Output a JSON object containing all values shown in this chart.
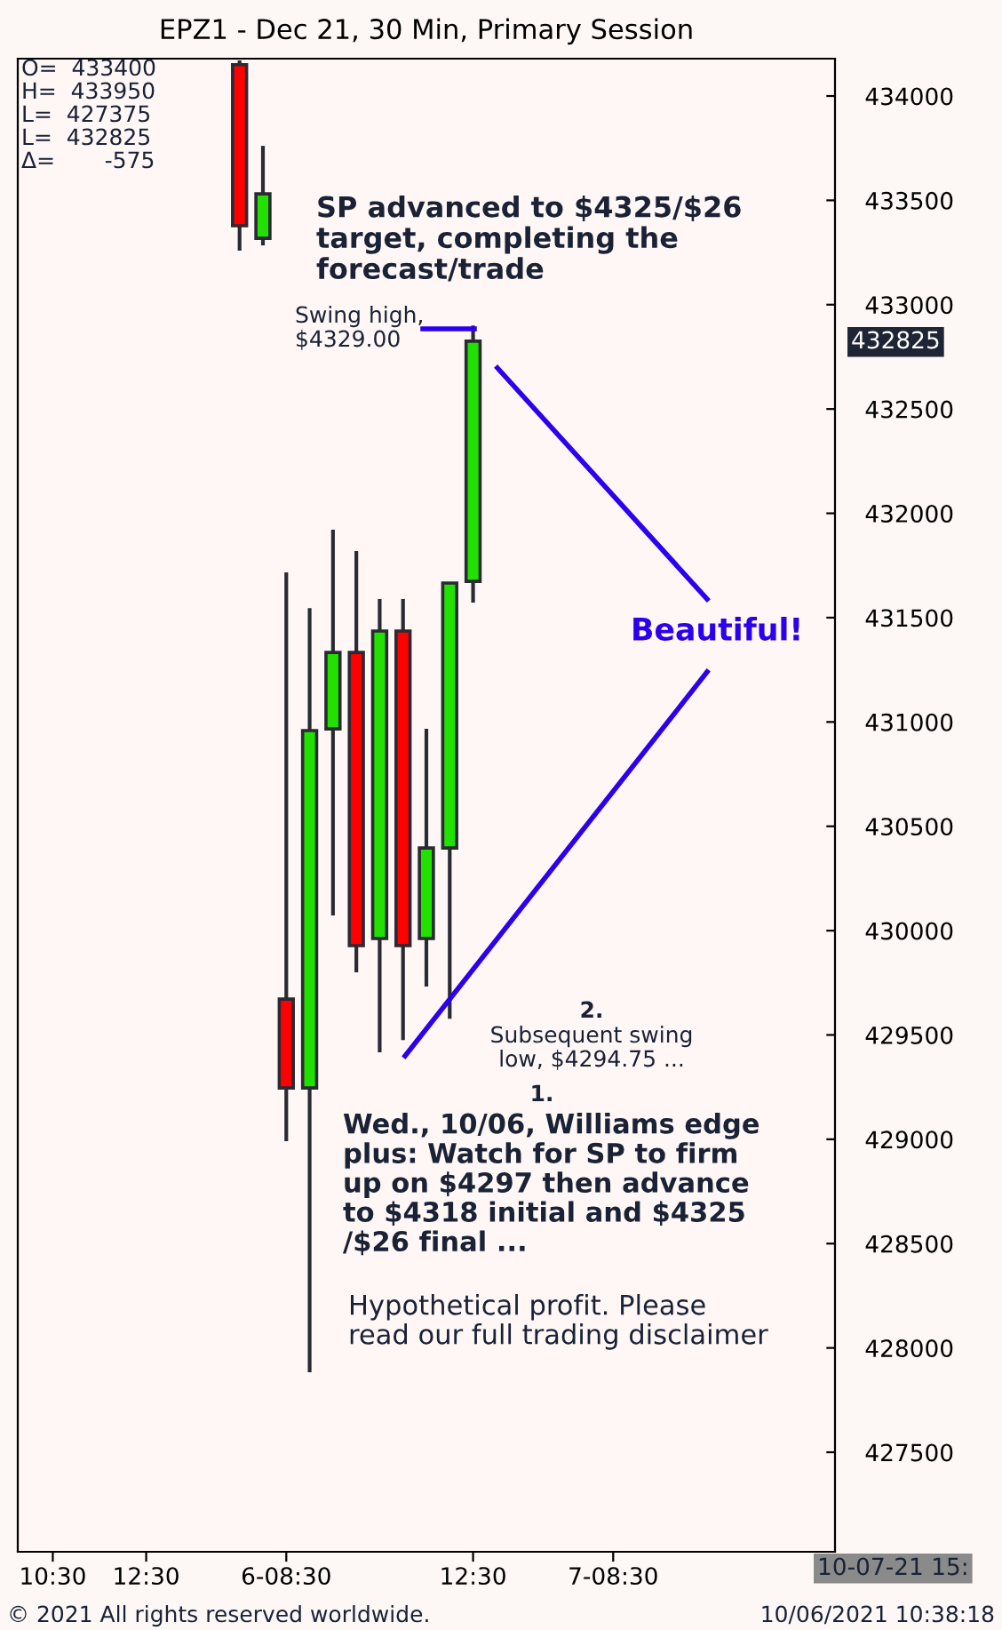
{
  "chart_data": {
    "type": "candlestick",
    "title": "EPZ1 - Dec 21, 30 Min, Primary Session",
    "categories": [
      null,
      "10:30",
      null,
      null,
      null,
      "12:30",
      null,
      null,
      null,
      null,
      null,
      "6-08:30",
      null,
      null,
      null,
      null,
      null,
      null,
      null,
      "12:30",
      null,
      null,
      null,
      null,
      null,
      "7-08:30",
      null,
      null,
      null,
      null,
      null,
      null,
      null,
      null,
      null
    ],
    "ohlc": [
      null,
      null,
      null,
      null,
      null,
      null,
      null,
      null,
      null,
      [
        434150,
        434170,
        433259,
        433378
      ],
      [
        433318,
        433761,
        433284,
        433531
      ],
      [
        429672,
        431717,
        428991,
        429246
      ],
      [
        429246,
        431546,
        427883,
        430959
      ],
      [
        430967,
        431921,
        430073,
        431333
      ],
      [
        431333,
        431819,
        429800,
        429928
      ],
      [
        429962,
        431589,
        429417,
        431436
      ],
      [
        431436,
        431589,
        429475,
        429928
      ],
      [
        429962,
        430967,
        429732,
        430396
      ],
      [
        430396,
        431666,
        429578,
        431666
      ],
      [
        431674,
        432900,
        431572,
        432825
      ],
      null,
      null,
      null,
      null,
      null,
      null,
      null,
      null,
      null,
      null,
      null,
      null,
      null,
      null,
      null
    ],
    "colors": [
      null,
      null,
      null,
      null,
      null,
      null,
      null,
      null,
      null,
      "#ff0000",
      "#22e000",
      "#ff0000",
      "#22e000",
      "#22e000",
      "#ff0000",
      "#22e000",
      "#ff0000",
      "#22e000",
      "#22e000",
      "#22e000",
      null,
      null,
      null,
      null,
      null,
      null,
      null,
      null,
      null,
      null,
      null,
      null,
      null,
      null,
      null
    ],
    "ylim": [
      427023,
      434179
    ],
    "yticks": [
      427500,
      428000,
      428500,
      429000,
      429500,
      430000,
      430500,
      431000,
      431500,
      432000,
      432500,
      433000,
      433500,
      434000
    ],
    "grid": false,
    "annotations": [
      "O=  433400",
      "H=  433950",
      "L=  427375",
      "L=  432825",
      "Δ=       -575",
      "SP advanced to $4325/$26\ntarget, completing the\nforecast/trade",
      "Swing high,\n$4329.00",
      "Beautiful!",
      "Subsequent swing\nlow, $4294.75 ...",
      "2.",
      "1.",
      "Wed., 10/06, Williams edge\nplus: Watch for SP to firm\nup on $4297 then advance\nto $4318 initial and $4325\n/$26 final ...",
      "Hypothetical profit. Please\nread our full trading disclaimer",
      "432825",
      "10-07-21 15:",
      "© 2021 All rights reserved worldwide.",
      "10/06/2021 10:38:18"
    ]
  }
}
